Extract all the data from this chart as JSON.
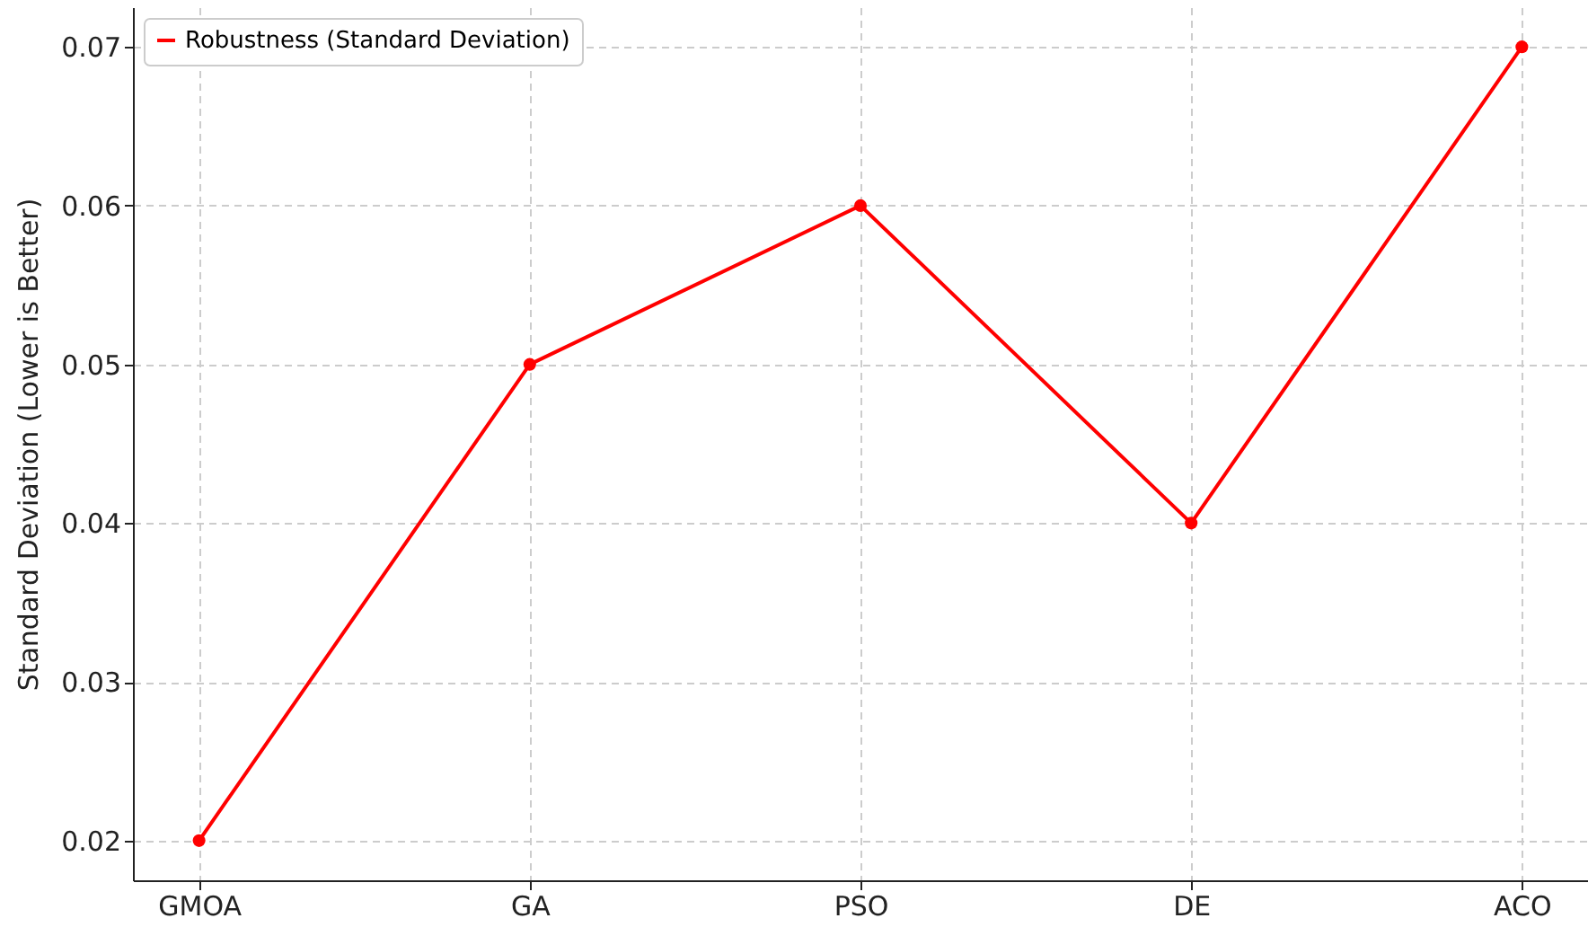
{
  "chart_data": {
    "type": "line",
    "ylabel": "Standard Deviation (Lower is Better)",
    "categories": [
      "GMOA",
      "GA",
      "PSO",
      "DE",
      "ACO"
    ],
    "series": [
      {
        "name": "Robustness (Standard Deviation)",
        "color": "#ff0000",
        "values": [
          0.02,
          0.05,
          0.06,
          0.04,
          0.07
        ]
      }
    ],
    "ylim": [
      0.0175,
      0.0725
    ],
    "yticks": [
      0.02,
      0.03,
      0.04,
      0.05,
      0.06,
      0.07
    ],
    "grid": true,
    "legend": "top left",
    "marker": "circle",
    "line_style": "solid"
  }
}
